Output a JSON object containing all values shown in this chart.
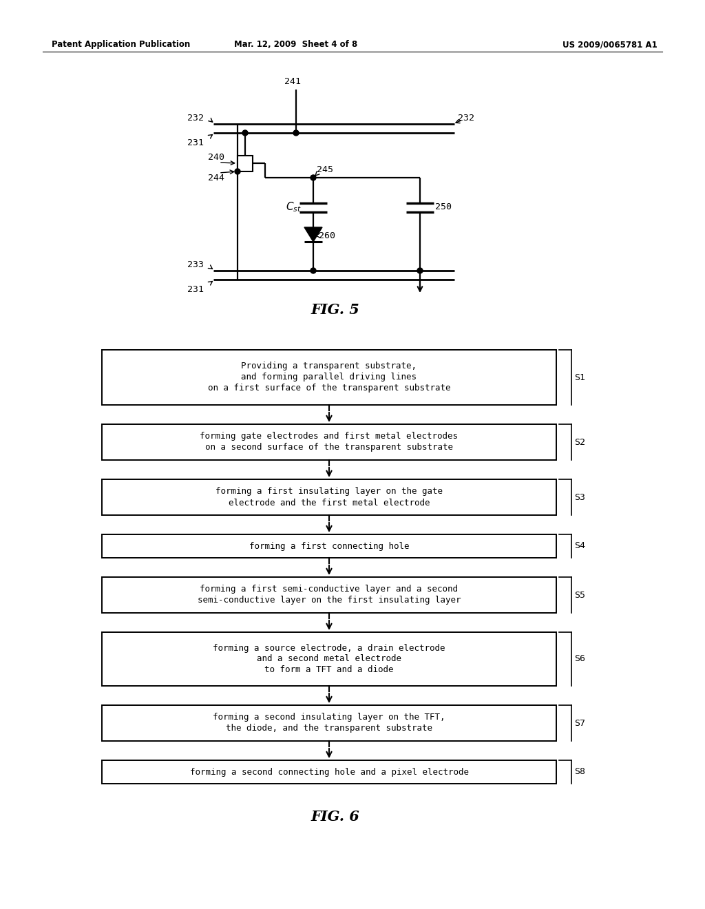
{
  "bg_color": "#ffffff",
  "page_header_left": "Patent Application Publication",
  "page_header_mid": "Mar. 12, 2009  Sheet 4 of 8",
  "page_header_right": "US 2009/0065781 A1",
  "fig5_label": "FIG. 5",
  "fig6_label": "FIG. 6",
  "flowchart_steps": [
    {
      "label": "S1",
      "lines": [
        "Providing a transparent substrate,",
        "and forming parallel driving lines",
        "on a first surface of the transparent substrate"
      ],
      "nlines": 3
    },
    {
      "label": "S2",
      "lines": [
        "forming gate electrodes and first metal electrodes",
        "on a second surface of the transparent substrate"
      ],
      "nlines": 2
    },
    {
      "label": "S3",
      "lines": [
        "forming a first insulating layer on the gate",
        "electrode and the first metal electrode"
      ],
      "nlines": 2
    },
    {
      "label": "S4",
      "lines": [
        "forming a first connecting hole"
      ],
      "nlines": 1
    },
    {
      "label": "S5",
      "lines": [
        "forming a first semi-conductive layer and a second",
        "semi-conductive layer on the first insulating layer"
      ],
      "nlines": 2
    },
    {
      "label": "S6",
      "lines": [
        "forming a source electrode, a drain electrode",
        "and a second metal electrode",
        "to form a TFT and a diode"
      ],
      "nlines": 3
    },
    {
      "label": "S7",
      "lines": [
        "forming a second insulating layer on the TFT,",
        "the diode, and the transparent substrate"
      ],
      "nlines": 2
    },
    {
      "label": "S8",
      "lines": [
        "forming a second connecting hole and a pixel electrode"
      ],
      "nlines": 1
    }
  ]
}
